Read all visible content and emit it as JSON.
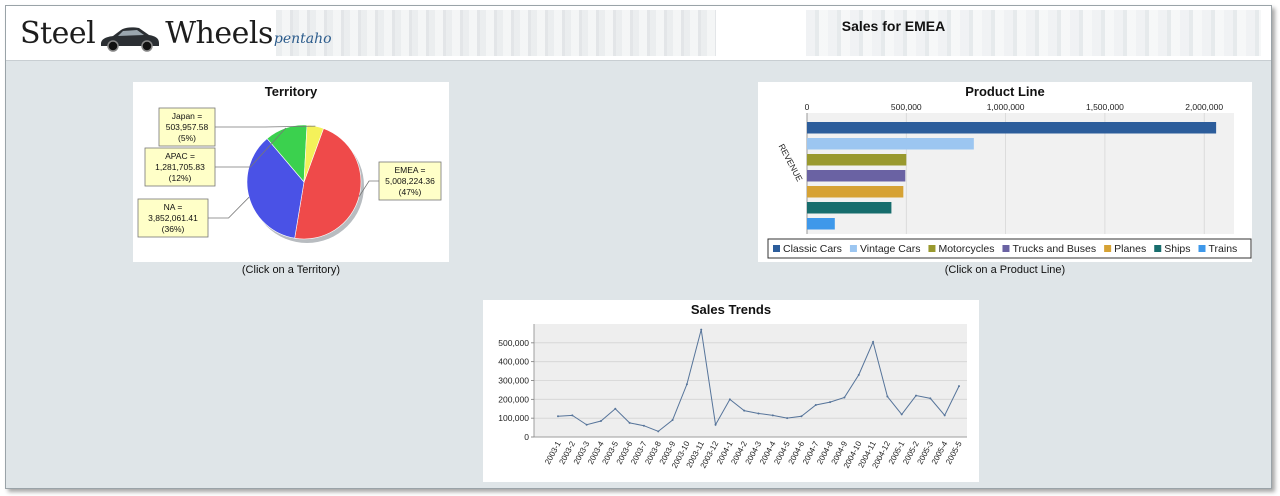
{
  "banner": {
    "logo_word1": "Steel",
    "logo_word2": "Wheels",
    "logo_brand": "pentaho",
    "title": "Sales for EMEA"
  },
  "territory": {
    "title": "Territory",
    "caption": "(Click on a Territory)",
    "chart_data": {
      "type": "pie",
      "title": "Territory",
      "slices": [
        {
          "name": "EMEA",
          "value": 5008224.36,
          "value_label": "5,008,224.36",
          "pct_label": "(47%)",
          "color": "#ef4a4a"
        },
        {
          "name": "NA",
          "value": 3852061.41,
          "value_label": "3,852,061.41",
          "pct_label": "(36%)",
          "color": "#4a52e6"
        },
        {
          "name": "APAC",
          "value": 1281705.83,
          "value_label": "1,281,705.83",
          "pct_label": "(12%)",
          "color": "#3bd14e"
        },
        {
          "name": "Japan",
          "value": 503957.58,
          "value_label": "503,957.58",
          "pct_label": "(5%)",
          "color": "#f4f15a"
        }
      ]
    }
  },
  "product_line": {
    "title": "Product Line",
    "caption": "(Click on a Product Line)",
    "chart_data": {
      "type": "bar",
      "orientation": "horizontal",
      "title": "Product Line",
      "ylabel": "REVENUE",
      "xlim": [
        0,
        2150000
      ],
      "ticks": [
        0,
        500000,
        1000000,
        1500000,
        2000000
      ],
      "tick_labels": [
        "0",
        "500,000",
        "1,000,000",
        "1,500,000",
        "2,000,000"
      ],
      "grid": true,
      "legend_position": "bottom",
      "series": [
        {
          "name": "Classic Cars",
          "value": 2060000,
          "color": "#2c5d9b"
        },
        {
          "name": "Vintage Cars",
          "value": 840000,
          "color": "#9cc6f1"
        },
        {
          "name": "Motorcycles",
          "value": 500000,
          "color": "#99992e"
        },
        {
          "name": "Trucks and Buses",
          "value": 495000,
          "color": "#6a62a3"
        },
        {
          "name": "Planes",
          "value": 485000,
          "color": "#d6a234"
        },
        {
          "name": "Ships",
          "value": 425000,
          "color": "#176d6d"
        },
        {
          "name": "Trains",
          "value": 140000,
          "color": "#3e98ea"
        }
      ]
    }
  },
  "sales_trends": {
    "title": "Sales Trends",
    "chart_data": {
      "type": "line",
      "title": "Sales Trends",
      "ylim": [
        0,
        600000
      ],
      "yticks": [
        0,
        100000,
        200000,
        300000,
        400000,
        500000
      ],
      "ytick_labels": [
        "0",
        "100,000",
        "200,000",
        "300,000",
        "400,000",
        "500,000"
      ],
      "grid": true,
      "color": "#56749a",
      "categories": [
        "2003-1",
        "2003-2",
        "2003-3",
        "2003-4",
        "2003-5",
        "2003-6",
        "2003-7",
        "2003-8",
        "2003-9",
        "2003-10",
        "2003-11",
        "2003-12",
        "2004-1",
        "2004-2",
        "2004-3",
        "2004-4",
        "2004-5",
        "2004-6",
        "2004-7",
        "2004-8",
        "2004-9",
        "2004-10",
        "2004-11",
        "2004-12",
        "2005-1",
        "2005-2",
        "2005-3",
        "2005-4",
        "2005-5"
      ],
      "values": [
        110000,
        115000,
        65000,
        85000,
        150000,
        75000,
        60000,
        30000,
        90000,
        280000,
        570000,
        65000,
        200000,
        140000,
        125000,
        115000,
        100000,
        110000,
        170000,
        185000,
        210000,
        330000,
        505000,
        215000,
        120000,
        220000,
        205000,
        115000,
        270000
      ]
    }
  }
}
